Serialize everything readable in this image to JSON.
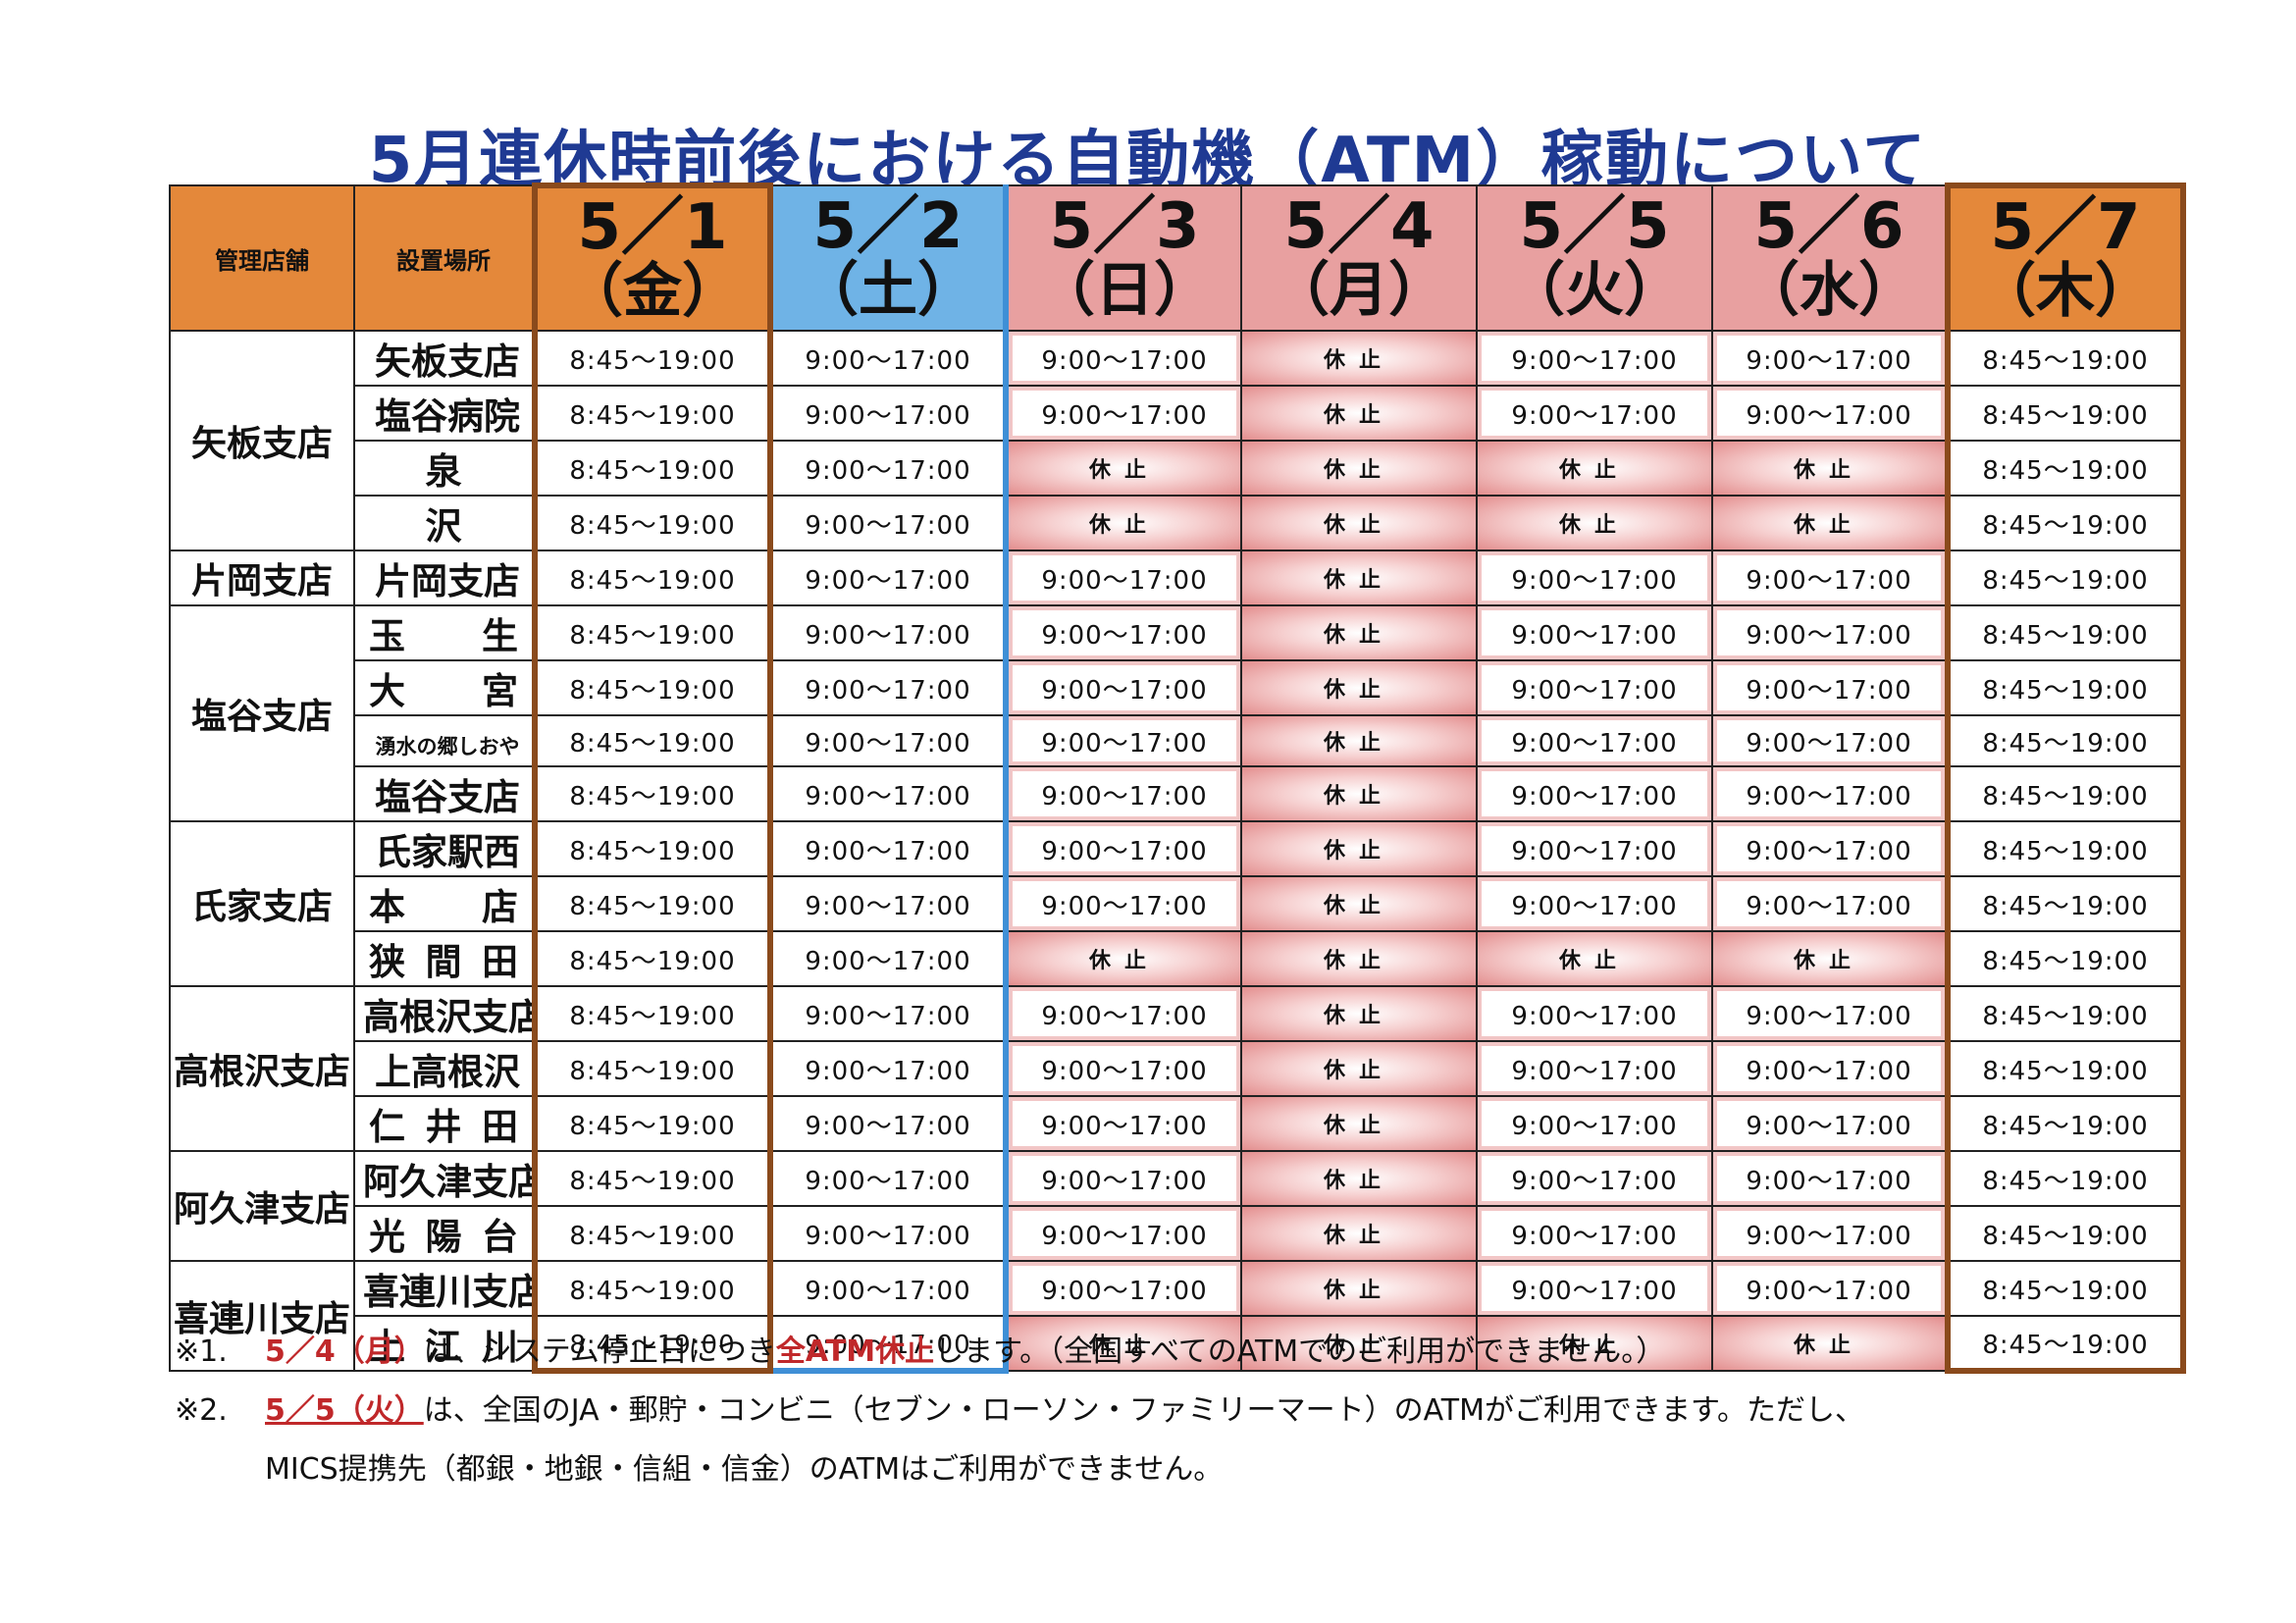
{
  "title": "5月連休時前後における自動機（ATM）稼動について",
  "header": {
    "manager_label": "管理店舗",
    "location_label": "設置場所",
    "days": [
      {
        "date": "5／1",
        "weekday": "（金）",
        "kind": "weekday"
      },
      {
        "date": "5／2",
        "weekday": "（土）",
        "kind": "saturday"
      },
      {
        "date": "5／3",
        "weekday": "（日）",
        "kind": "holiday"
      },
      {
        "date": "5／4",
        "weekday": "（月）",
        "kind": "holiday"
      },
      {
        "date": "5／5",
        "weekday": "（火）",
        "kind": "holiday"
      },
      {
        "date": "5／6",
        "weekday": "（水）",
        "kind": "holiday"
      },
      {
        "date": "5／7",
        "weekday": "（木）",
        "kind": "weekday"
      }
    ]
  },
  "closed_label": "休止",
  "groups": [
    {
      "manager": "矢板支店",
      "rows": [
        {
          "location": "矢板支店",
          "hours": [
            "8:45～19:00",
            "9:00～17:00",
            "9:00～17:00",
            "休止",
            "9:00～17:00",
            "9:00～17:00",
            "8:45～19:00"
          ]
        },
        {
          "location": "塩谷病院",
          "hours": [
            "8:45～19:00",
            "9:00～17:00",
            "9:00～17:00",
            "休止",
            "9:00～17:00",
            "9:00～17:00",
            "8:45～19:00"
          ]
        },
        {
          "location": "泉",
          "hours": [
            "8:45～19:00",
            "9:00～17:00",
            "休止",
            "休止",
            "休止",
            "休止",
            "8:45～19:00"
          ]
        },
        {
          "location": "沢",
          "hours": [
            "8:45～19:00",
            "9:00～17:00",
            "休止",
            "休止",
            "休止",
            "休止",
            "8:45～19:00"
          ]
        }
      ]
    },
    {
      "manager": "片岡支店",
      "rows": [
        {
          "location": "片岡支店",
          "hours": [
            "8:45～19:00",
            "9:00～17:00",
            "9:00～17:00",
            "休止",
            "9:00～17:00",
            "9:00～17:00",
            "8:45～19:00"
          ]
        }
      ]
    },
    {
      "manager": "塩谷支店",
      "rows": [
        {
          "location": "玉生",
          "hours": [
            "8:45～19:00",
            "9:00～17:00",
            "9:00～17:00",
            "休止",
            "9:00～17:00",
            "9:00～17:00",
            "8:45～19:00"
          ]
        },
        {
          "location": "大宮",
          "hours": [
            "8:45～19:00",
            "9:00～17:00",
            "9:00～17:00",
            "休止",
            "9:00～17:00",
            "9:00～17:00",
            "8:45～19:00"
          ]
        },
        {
          "location": "湧水の郷しおや",
          "hours": [
            "8:45～19:00",
            "9:00～17:00",
            "9:00～17:00",
            "休止",
            "9:00～17:00",
            "9:00～17:00",
            "8:45～19:00"
          ]
        },
        {
          "location": "塩谷支店",
          "hours": [
            "8:45～19:00",
            "9:00～17:00",
            "9:00～17:00",
            "休止",
            "9:00～17:00",
            "9:00～17:00",
            "8:45～19:00"
          ]
        }
      ]
    },
    {
      "manager": "氏家支店",
      "rows": [
        {
          "location": "氏家駅西",
          "hours": [
            "8:45～19:00",
            "9:00～17:00",
            "9:00～17:00",
            "休止",
            "9:00～17:00",
            "9:00～17:00",
            "8:45～19:00"
          ]
        },
        {
          "location": "本店",
          "hours": [
            "8:45～19:00",
            "9:00～17:00",
            "9:00～17:00",
            "休止",
            "9:00～17:00",
            "9:00～17:00",
            "8:45～19:00"
          ]
        },
        {
          "location": "狭間田",
          "hours": [
            "8:45～19:00",
            "9:00～17:00",
            "休止",
            "休止",
            "休止",
            "休止",
            "8:45～19:00"
          ]
        }
      ]
    },
    {
      "manager": "高根沢支店",
      "rows": [
        {
          "location": "高根沢支店",
          "hours": [
            "8:45～19:00",
            "9:00～17:00",
            "9:00～17:00",
            "休止",
            "9:00～17:00",
            "9:00～17:00",
            "8:45～19:00"
          ]
        },
        {
          "location": "上高根沢",
          "hours": [
            "8:45～19:00",
            "9:00～17:00",
            "9:00～17:00",
            "休止",
            "9:00～17:00",
            "9:00～17:00",
            "8:45～19:00"
          ]
        },
        {
          "location": "仁井田",
          "hours": [
            "8:45～19:00",
            "9:00～17:00",
            "9:00～17:00",
            "休止",
            "9:00～17:00",
            "9:00～17:00",
            "8:45～19:00"
          ]
        }
      ]
    },
    {
      "manager": "阿久津支店",
      "rows": [
        {
          "location": "阿久津支店",
          "hours": [
            "8:45～19:00",
            "9:00～17:00",
            "9:00～17:00",
            "休止",
            "9:00～17:00",
            "9:00～17:00",
            "8:45～19:00"
          ]
        },
        {
          "location": "光陽台",
          "hours": [
            "8:45～19:00",
            "9:00～17:00",
            "9:00～17:00",
            "休止",
            "9:00～17:00",
            "9:00～17:00",
            "8:45～19:00"
          ]
        }
      ]
    },
    {
      "manager": "喜連川支店",
      "rows": [
        {
          "location": "喜連川支店",
          "hours": [
            "8:45～19:00",
            "9:00～17:00",
            "9:00～17:00",
            "休止",
            "9:00～17:00",
            "9:00～17:00",
            "8:45～19:00"
          ]
        },
        {
          "location": "上江川",
          "hours": [
            "8:45～19:00",
            "9:00～17:00",
            "休止",
            "休止",
            "休止",
            "休止",
            "8:45～19:00"
          ]
        }
      ]
    }
  ],
  "notes": {
    "note1": {
      "mark": "※1.",
      "date": "5／4（月）",
      "text_a": "は、システム停止日につき",
      "emph": "全ATM休止",
      "text_b": "します。（全国すべてのATMでのご利用ができません。）"
    },
    "note2": {
      "mark": "※2.",
      "date": "5／5（火）",
      "text_a": "は、全国のJA・郵貯・コンビニ（セブン・ローソン・ファミリーマート）のATMがご利用できます。ただし、",
      "line2": "MICS提携先（都銀・地銀・信組・信金）のATMはご利用ができません。"
    }
  },
  "colors": {
    "title": "#1f3a93",
    "header_orange": "#e4883a",
    "header_blue": "#6fb3e6",
    "header_pink": "#e8a0a0",
    "closed_pink": "#e38e8e",
    "note_red": "#c0282a"
  }
}
